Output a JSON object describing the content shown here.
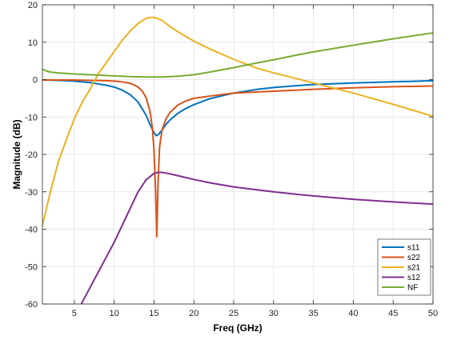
{
  "chart_data": {
    "type": "line",
    "title": "",
    "xlabel": "Freq (GHz)",
    "ylabel": "Magnitude (dB)",
    "xlim": [
      1,
      50
    ],
    "ylim": [
      -60,
      20
    ],
    "xticks": [
      5,
      10,
      15,
      20,
      25,
      30,
      35,
      40,
      45,
      50
    ],
    "yticks": [
      -60,
      -50,
      -40,
      -30,
      -20,
      -10,
      0,
      10,
      20
    ],
    "grid": true,
    "legend_position": "bottom-right",
    "series": [
      {
        "name": "s11",
        "color": "#0072BD",
        "x": [
          1,
          3,
          5,
          7,
          9,
          10,
          11,
          12,
          13,
          14,
          14.5,
          15,
          15.3,
          15.6,
          16,
          16.5,
          17,
          18,
          19,
          20,
          22,
          25,
          28,
          30,
          33,
          35,
          40,
          45,
          50
        ],
        "y": [
          -0.1,
          -0.2,
          -0.4,
          -0.8,
          -1.5,
          -2.0,
          -2.8,
          -4.0,
          -6.0,
          -9.5,
          -12.0,
          -14.2,
          -15.0,
          -14.6,
          -13.5,
          -12.0,
          -10.8,
          -9.0,
          -7.7,
          -6.7,
          -5.1,
          -3.6,
          -2.6,
          -2.1,
          -1.6,
          -1.3,
          -0.9,
          -0.6,
          -0.3
        ]
      },
      {
        "name": "s22",
        "color": "#D95319",
        "x": [
          1,
          3,
          5,
          7,
          9,
          10,
          11,
          12,
          12.5,
          13,
          13.5,
          14,
          14.5,
          14.8,
          15,
          15.2,
          15.35,
          15.5,
          15.7,
          16,
          16.5,
          17,
          18,
          19,
          20,
          22,
          25,
          30,
          35,
          40,
          45,
          50
        ],
        "y": [
          -0.1,
          -0.1,
          -0.1,
          -0.2,
          -0.3,
          -0.4,
          -0.6,
          -1.0,
          -1.4,
          -2.0,
          -3.0,
          -4.8,
          -8.5,
          -13.0,
          -19.0,
          -30.0,
          -42.0,
          -28.0,
          -18.0,
          -13.5,
          -10.5,
          -8.8,
          -6.8,
          -5.7,
          -5.0,
          -4.4,
          -3.6,
          -3.1,
          -2.6,
          -2.2,
          -1.9,
          -1.7
        ]
      },
      {
        "name": "s21",
        "color": "#EDB120",
        "x": [
          1,
          2,
          3,
          4,
          5,
          6,
          7,
          8,
          9,
          10,
          11,
          12,
          13,
          14,
          14.5,
          15,
          15.5,
          16,
          17,
          18,
          19,
          20,
          22,
          25,
          28,
          30,
          33,
          35,
          40,
          45,
          50
        ],
        "y": [
          -39,
          -30,
          -22,
          -16,
          -10.5,
          -6.0,
          -2.5,
          1.5,
          4.5,
          7.5,
          10.5,
          13.0,
          15.0,
          16.4,
          16.6,
          16.6,
          16.3,
          15.8,
          14.2,
          12.8,
          11.5,
          10.3,
          8.2,
          5.4,
          3.0,
          1.8,
          0.2,
          -0.9,
          -3.6,
          -6.6,
          -9.8
        ]
      },
      {
        "name": "s12",
        "color": "#7E2F8E",
        "x": [
          5,
          6,
          7,
          8,
          9,
          10,
          11,
          12,
          13,
          14,
          15,
          15.5,
          16,
          17,
          18,
          19,
          20,
          22,
          25,
          28,
          30,
          33,
          35,
          40,
          45,
          50
        ],
        "y": [
          -64,
          -59.5,
          -55.5,
          -51.5,
          -47.5,
          -43.5,
          -39.0,
          -34.5,
          -30.0,
          -26.8,
          -25.1,
          -24.8,
          -24.8,
          -25.2,
          -25.7,
          -26.2,
          -26.7,
          -27.6,
          -28.7,
          -29.5,
          -30.0,
          -30.7,
          -31.1,
          -32.0,
          -32.7,
          -33.3
        ]
      },
      {
        "name": "NF",
        "color": "#77AC30",
        "x": [
          1,
          1.5,
          2,
          3,
          5,
          8,
          10,
          12,
          14,
          15,
          16,
          18,
          20,
          22,
          25,
          28,
          30,
          33,
          35,
          40,
          45,
          50
        ],
        "y": [
          2.8,
          2.3,
          2.0,
          1.8,
          1.5,
          1.2,
          1.0,
          0.8,
          0.7,
          0.7,
          0.7,
          0.9,
          1.3,
          2.0,
          3.2,
          4.5,
          5.3,
          6.6,
          7.4,
          9.2,
          10.9,
          12.5
        ]
      }
    ]
  }
}
